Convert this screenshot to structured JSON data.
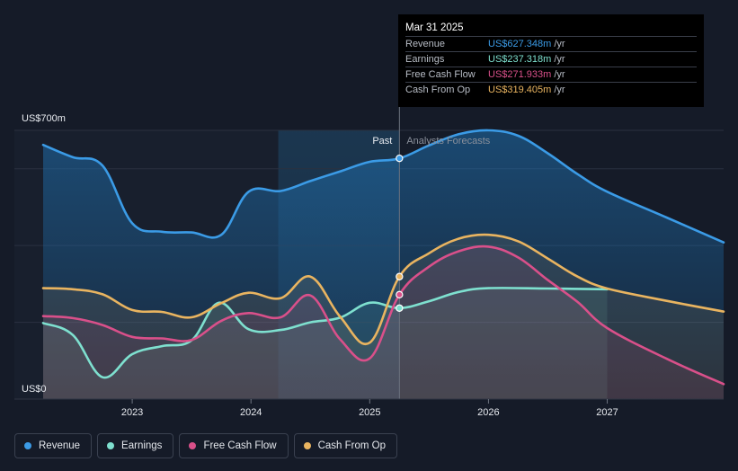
{
  "tooltip": {
    "date": "Mar 31 2025",
    "rows": [
      {
        "label": "Revenue",
        "value": "US$627.348m",
        "unit": "/yr",
        "color": "#3b9be6"
      },
      {
        "label": "Earnings",
        "value": "US$237.318m",
        "unit": "/yr",
        "color": "#7ee0cf"
      },
      {
        "label": "Free Cash Flow",
        "value": "US$271.933m",
        "unit": "/yr",
        "color": "#d9508a"
      },
      {
        "label": "Cash From Op",
        "value": "US$319.405m",
        "unit": "/yr",
        "color": "#e9b460"
      }
    ]
  },
  "legend": [
    {
      "label": "Revenue",
      "color": "#3b9be6"
    },
    {
      "label": "Earnings",
      "color": "#7ee0cf"
    },
    {
      "label": "Free Cash Flow",
      "color": "#d9508a"
    },
    {
      "label": "Cash From Op",
      "color": "#e9b460"
    }
  ],
  "chart_data": {
    "type": "line",
    "y_top_label": "US$700m",
    "y_bottom_label": "US$0",
    "ylim": [
      0,
      700
    ],
    "xlim": [
      2022.25,
      2027.98
    ],
    "x_ticks": [
      2023,
      2024,
      2025,
      2026,
      2027
    ],
    "x_tick_labels": [
      "2023",
      "2024",
      "2025",
      "2026",
      "2027"
    ],
    "past_label": "Past",
    "forecast_label": "Analysts Forecasts",
    "divider_x": 2025.25,
    "highlight_start_x": 2024.23,
    "grid": true,
    "series": [
      {
        "name": "Revenue",
        "color": "#3b9be6",
        "points": [
          [
            2022.25,
            662
          ],
          [
            2022.5,
            630
          ],
          [
            2022.75,
            608
          ],
          [
            2023.0,
            458
          ],
          [
            2023.25,
            436
          ],
          [
            2023.5,
            434
          ],
          [
            2023.75,
            428
          ],
          [
            2023.98,
            540
          ],
          [
            2024.25,
            542
          ],
          [
            2024.5,
            568
          ],
          [
            2024.75,
            593
          ],
          [
            2025.0,
            618
          ],
          [
            2025.25,
            627
          ],
          [
            2025.5,
            661
          ],
          [
            2025.75,
            690
          ],
          [
            2026.0,
            700
          ],
          [
            2026.25,
            686
          ],
          [
            2026.5,
            640
          ],
          [
            2026.75,
            586
          ],
          [
            2027.0,
            540
          ],
          [
            2027.5,
            473
          ],
          [
            2027.98,
            408
          ]
        ]
      },
      {
        "name": "Earnings",
        "color": "#7ee0cf",
        "points": [
          [
            2022.25,
            198
          ],
          [
            2022.5,
            167
          ],
          [
            2022.75,
            57
          ],
          [
            2023.0,
            117
          ],
          [
            2023.25,
            138
          ],
          [
            2023.5,
            153
          ],
          [
            2023.73,
            251
          ],
          [
            2023.98,
            182
          ],
          [
            2024.25,
            180
          ],
          [
            2024.5,
            200
          ],
          [
            2024.75,
            212
          ],
          [
            2025.0,
            251
          ],
          [
            2025.25,
            237
          ],
          [
            2025.5,
            255
          ],
          [
            2025.75,
            279
          ],
          [
            2026.0,
            289
          ],
          [
            2026.5,
            288
          ],
          [
            2027.0,
            286
          ]
        ]
      },
      {
        "name": "Free Cash Flow",
        "color": "#d9508a",
        "points": [
          [
            2022.25,
            216
          ],
          [
            2022.5,
            211
          ],
          [
            2022.75,
            193
          ],
          [
            2023.0,
            162
          ],
          [
            2023.25,
            158
          ],
          [
            2023.5,
            154
          ],
          [
            2023.75,
            204
          ],
          [
            2023.98,
            224
          ],
          [
            2024.25,
            213
          ],
          [
            2024.5,
            270
          ],
          [
            2024.75,
            156
          ],
          [
            2025.0,
            106
          ],
          [
            2025.25,
            272
          ],
          [
            2025.5,
            345
          ],
          [
            2025.75,
            385
          ],
          [
            2026.0,
            397
          ],
          [
            2026.25,
            369
          ],
          [
            2026.5,
            310
          ],
          [
            2026.75,
            253
          ],
          [
            2027.0,
            185
          ],
          [
            2027.5,
            105
          ],
          [
            2027.98,
            39
          ]
        ]
      },
      {
        "name": "Cash From Op",
        "color": "#e9b460",
        "points": [
          [
            2022.25,
            289
          ],
          [
            2022.5,
            286
          ],
          [
            2022.75,
            273
          ],
          [
            2023.0,
            232
          ],
          [
            2023.25,
            227
          ],
          [
            2023.5,
            213
          ],
          [
            2023.75,
            250
          ],
          [
            2023.98,
            277
          ],
          [
            2024.25,
            263
          ],
          [
            2024.5,
            319
          ],
          [
            2024.75,
            215
          ],
          [
            2025.0,
            147
          ],
          [
            2025.25,
            319
          ],
          [
            2025.5,
            380
          ],
          [
            2025.75,
            418
          ],
          [
            2026.0,
            428
          ],
          [
            2026.25,
            411
          ],
          [
            2026.5,
            366
          ],
          [
            2026.75,
            319
          ],
          [
            2027.0,
            288
          ],
          [
            2027.5,
            256
          ],
          [
            2027.98,
            228
          ]
        ]
      }
    ]
  }
}
